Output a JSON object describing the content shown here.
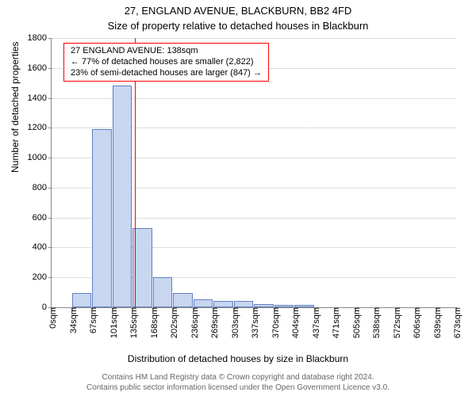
{
  "title_line1": "27, ENGLAND AVENUE, BLACKBURN, BB2 4FD",
  "title_line2": "Size of property relative to detached houses in Blackburn",
  "y_axis_label": "Number of detached properties",
  "x_axis_label": "Distribution of detached houses by size in Blackburn",
  "chart": {
    "type": "histogram",
    "y_max": 1800,
    "y_tick_step": 200,
    "y_ticks": [
      0,
      200,
      400,
      600,
      800,
      1000,
      1200,
      1400,
      1600,
      1800
    ],
    "x_ticks": [
      "0sqm",
      "34sqm",
      "67sqm",
      "101sqm",
      "135sqm",
      "168sqm",
      "202sqm",
      "236sqm",
      "269sqm",
      "303sqm",
      "337sqm",
      "370sqm",
      "404sqm",
      "437sqm",
      "471sqm",
      "505sqm",
      "538sqm",
      "572sqm",
      "606sqm",
      "639sqm",
      "673sqm"
    ],
    "bars": [
      0,
      95,
      1190,
      1480,
      530,
      200,
      95,
      55,
      45,
      40,
      20,
      15,
      18,
      0,
      0,
      0,
      0,
      0,
      0,
      0
    ],
    "bar_fill": "#c8d6f0",
    "bar_stroke": "#6080c0",
    "grid_color": "#bbbbbb",
    "axis_color": "#888888",
    "background": "#ffffff",
    "tick_fontsize": 11,
    "label_fontsize": 12,
    "title_fontsize": 13,
    "reference_line": {
      "value_sqm": 138,
      "min_sqm": 0,
      "max_sqm": 673,
      "color": "#ff0000",
      "width": 1
    }
  },
  "annotation": {
    "border_color": "#ff0000",
    "line1": "27 ENGLAND AVENUE: 138sqm",
    "line2": "← 77% of detached houses are smaller (2,822)",
    "line3": "23% of semi-detached houses are larger (847) →"
  },
  "footer": {
    "line1": "Contains HM Land Registry data © Crown copyright and database right 2024.",
    "line2": "Contains public sector information licensed under the Open Government Licence v3.0."
  }
}
